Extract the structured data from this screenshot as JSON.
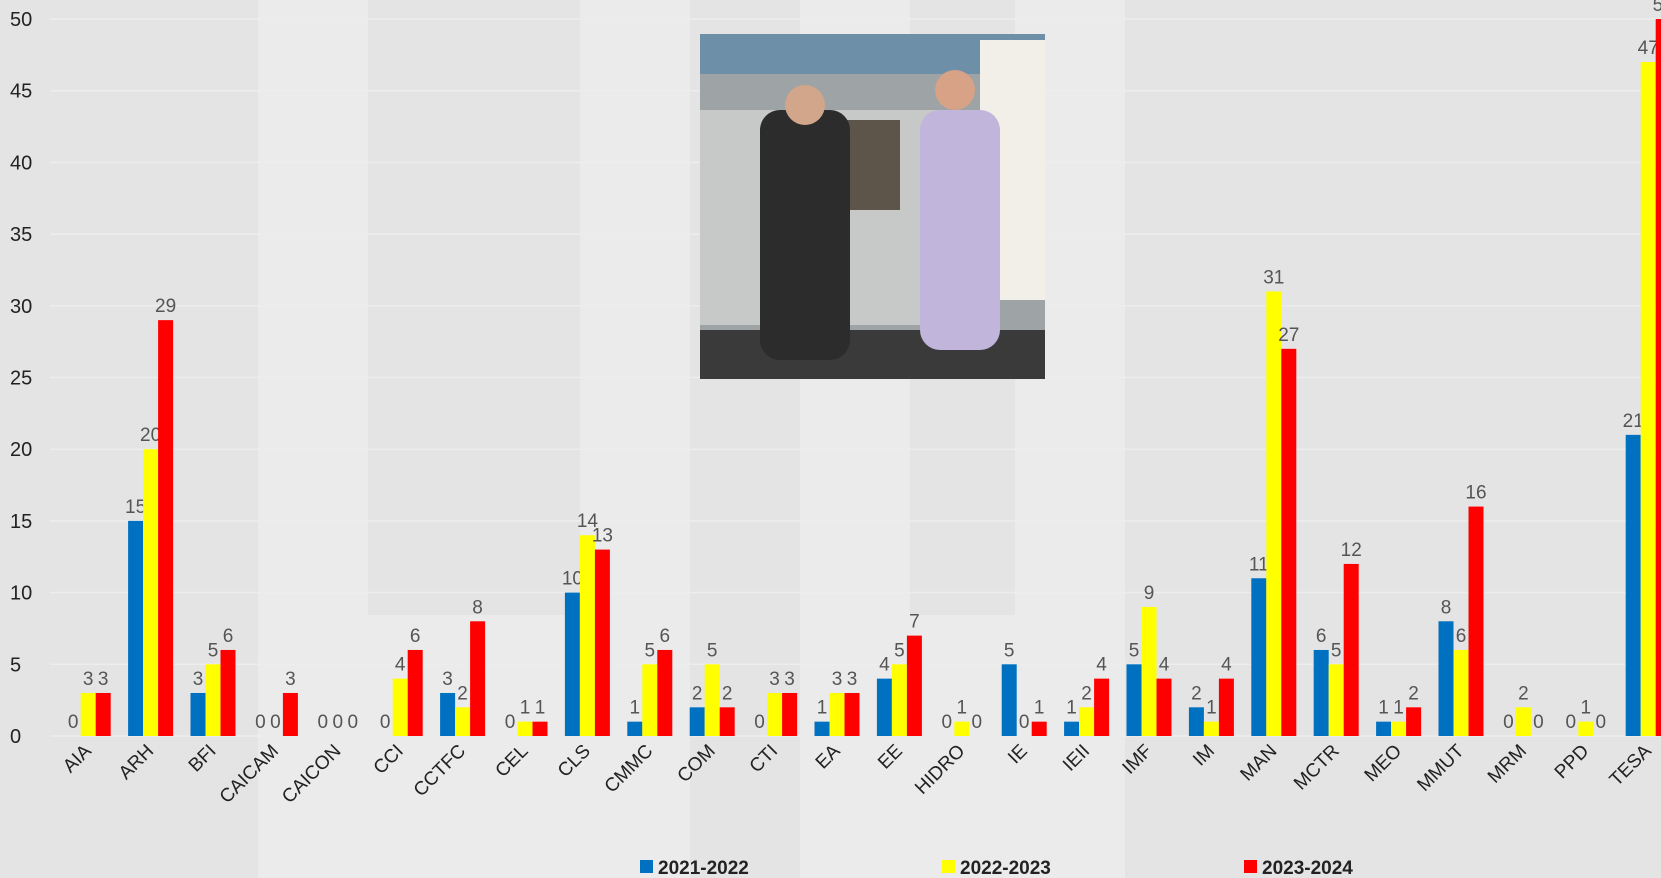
{
  "chart_data": {
    "type": "bar",
    "categories": [
      "AIA",
      "ARH",
      "BFI",
      "CAICAM",
      "CAICON",
      "CCI",
      "CCTFC",
      "CEL",
      "CLS",
      "CMMC",
      "COM",
      "CTI",
      "EA",
      "EE",
      "HIDRO",
      "IE",
      "IEII",
      "IMF",
      "IM",
      "MAN",
      "MCTR",
      "MEO",
      "MMUT",
      "MRM",
      "PPD",
      "TESA"
    ],
    "series": [
      {
        "name": "2021-2022",
        "color": "#0070c0",
        "values": [
          0,
          15,
          3,
          0,
          0,
          0,
          3,
          0,
          10,
          1,
          2,
          0,
          1,
          4,
          0,
          5,
          1,
          5,
          2,
          11,
          6,
          1,
          8,
          0,
          0,
          21
        ]
      },
      {
        "name": "2022-2023",
        "color": "#ffff00",
        "values": [
          3,
          20,
          5,
          0,
          0,
          4,
          2,
          1,
          14,
          5,
          5,
          3,
          3,
          5,
          1,
          0,
          2,
          9,
          1,
          31,
          5,
          1,
          6,
          2,
          1,
          47
        ]
      },
      {
        "name": "2023-2024",
        "color": "#ff0000",
        "values": [
          3,
          29,
          6,
          3,
          0,
          6,
          8,
          1,
          13,
          6,
          2,
          3,
          3,
          7,
          0,
          1,
          4,
          4,
          4,
          27,
          12,
          2,
          16,
          0,
          0,
          50
        ]
      }
    ],
    "ylim": [
      0,
      50
    ],
    "yticks": [
      0,
      5,
      10,
      15,
      20,
      25,
      30,
      35,
      40,
      45,
      50
    ],
    "grid": true,
    "legend": "bottom"
  }
}
